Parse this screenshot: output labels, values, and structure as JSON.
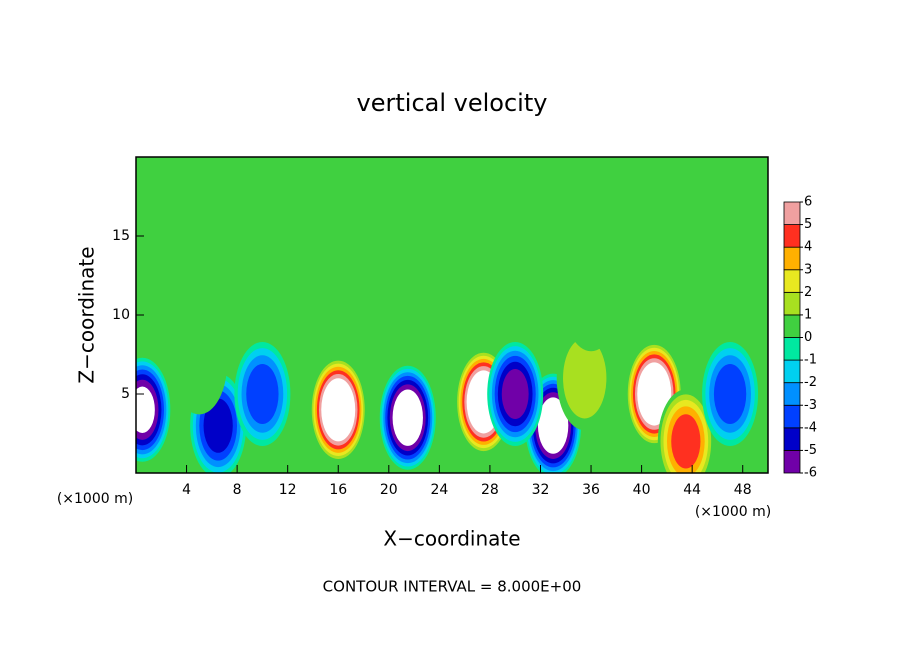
{
  "chart_data": {
    "type": "contour",
    "title": "vertical velocity",
    "xlabel": "X−coordinate",
    "ylabel": "Z−coordinate",
    "xunit": "(×1000 m)",
    "note": "CONTOUR INTERVAL = 8.000E+00",
    "xlim": [
      0,
      50
    ],
    "ylim": [
      0,
      20
    ],
    "xticks": [
      4,
      8,
      12,
      16,
      20,
      24,
      28,
      32,
      36,
      40,
      44,
      48
    ],
    "yticks": [
      5,
      10,
      15
    ],
    "background": "#40d040",
    "colorbar_ticks": [
      -6,
      -5,
      -4,
      -3,
      -2,
      -1,
      0,
      1,
      2,
      3,
      4,
      5,
      6
    ],
    "colors": [
      "#7000a8",
      "#0000c8",
      "#0040ff",
      "#0090ff",
      "#00d0f0",
      "#00e8a0",
      "#40d040",
      "#a8e020",
      "#e8e820",
      "#ffb000",
      "#ff3020",
      "#f0a0a0"
    ],
    "beyond": "#ffffff",
    "field": [
      {
        "x": 16,
        "z": 4,
        "value": 9
      },
      {
        "x": 27.5,
        "z": 4.5,
        "value": 9
      },
      {
        "x": 41,
        "z": 5,
        "value": 9
      },
      {
        "x": 43.5,
        "z": 2,
        "value": 5
      },
      {
        "x": 21.5,
        "z": 3.5,
        "value": -8
      },
      {
        "x": 33,
        "z": 3,
        "value": -8
      },
      {
        "x": 30,
        "z": 5,
        "value": -6
      },
      {
        "x": 0.5,
        "z": 4,
        "value": -7
      },
      {
        "x": 6.5,
        "z": 3,
        "value": -5
      },
      {
        "x": 10,
        "z": 5,
        "value": -4
      },
      {
        "x": 47,
        "z": 5,
        "value": -4
      },
      {
        "x": 35.5,
        "z": 6,
        "value": 2
      },
      {
        "x": 5,
        "z": 7,
        "value": 1
      },
      {
        "x": 36,
        "z": 11,
        "value": 1
      }
    ]
  }
}
